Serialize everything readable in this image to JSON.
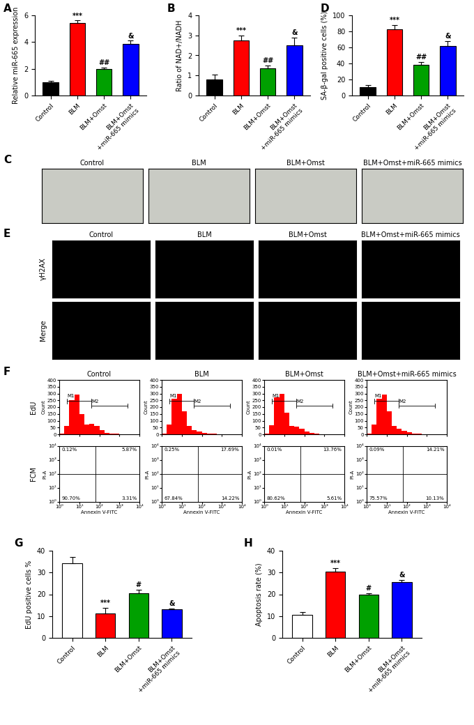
{
  "chart_data": [
    {
      "type": "bar",
      "panel_label": "A",
      "ylabel": "Relative miR-665 expression",
      "categories": [
        "Control",
        "BLM",
        "BLM+Omst",
        "BLM+Omst\n+miR-665 mimics"
      ],
      "values": [
        1.0,
        5.4,
        2.0,
        3.85
      ],
      "errors": [
        0.08,
        0.22,
        0.1,
        0.25
      ],
      "significance": [
        null,
        "***",
        "##",
        "&"
      ],
      "colors": [
        "#000000",
        "#ff0000",
        "#00a000",
        "#0000ff"
      ],
      "ylim": [
        0,
        6
      ],
      "yticks": [
        0,
        2,
        4,
        6
      ]
    },
    {
      "type": "bar",
      "panel_label": "B",
      "ylabel": "Ratio of NAD+/NADH",
      "categories": [
        "Control",
        "BLM",
        "BLM+Omst",
        "BLM+Omst\n+miR-665 mimics"
      ],
      "values": [
        0.8,
        2.75,
        1.35,
        2.5
      ],
      "errors": [
        0.25,
        0.25,
        0.15,
        0.4
      ],
      "significance": [
        null,
        "***",
        "##",
        "&"
      ],
      "colors": [
        "#000000",
        "#ff0000",
        "#00a000",
        "#0000ff"
      ],
      "ylim": [
        0,
        4
      ],
      "yticks": [
        0,
        1,
        2,
        3,
        4
      ]
    },
    {
      "type": "bar",
      "panel_label": "D",
      "ylabel": "SA-β-gal positive cells (%)",
      "categories": [
        "Control",
        "BLM",
        "BLM+Omst",
        "BLM+Omst\n+miR-665 mimics"
      ],
      "values": [
        10,
        83,
        38,
        62
      ],
      "errors": [
        3,
        5,
        4,
        6
      ],
      "significance": [
        null,
        "***",
        "##",
        "&"
      ],
      "colors": [
        "#000000",
        "#ff0000",
        "#00a000",
        "#0000ff"
      ],
      "ylim": [
        0,
        100
      ],
      "yticks": [
        0,
        20,
        40,
        60,
        80,
        100
      ]
    },
    {
      "type": "image_grid",
      "panel_label": "C",
      "color": "#c9cbc4",
      "columns": [
        "Control",
        "BLM",
        "BLM+Omst",
        "BLM+Omst+miR-665 mimics"
      ]
    },
    {
      "type": "image_grid",
      "panel_label": "E",
      "color": "#000000",
      "columns": [
        "Control",
        "BLM",
        "BLM+Omst",
        "BLM+Omst+miR-665 mimics"
      ],
      "rows": [
        "γH2AX",
        "Merge"
      ]
    },
    {
      "type": "flow_grid",
      "panel_label": "F",
      "columns": [
        "Control",
        "BLM",
        "BLM+Omst",
        "BLM+Omst+miR-665 mimics"
      ],
      "rows": [
        {
          "type": "histogram",
          "label": "EdU",
          "ylabel": "Count",
          "color": "#ff0000",
          "log": "x",
          "tick_labels": "y",
          "xlim": [
            1,
            10000
          ],
          "xticks": [
            1,
            10,
            100,
            1000,
            10000
          ],
          "ylim": [
            0,
            400
          ],
          "yticks": [
            0,
            50,
            100,
            150,
            200,
            250,
            300,
            350,
            400
          ],
          "bins": [
            1,
            1.78,
            3.16,
            5.62,
            10,
            17.8,
            31.6,
            56.2,
            100,
            178,
            316,
            562,
            1000,
            1778,
            3162,
            5623,
            10000
          ],
          "gates": [
            {
              "label": "M1",
              "start": 2.5,
              "end": 40,
              "level": 245
            },
            {
              "label": "M2",
              "start": 40,
              "end": 2500,
              "level": 210
            }
          ],
          "charts": [
            {
              "counts": [
                5,
                60,
                250,
                290,
                150,
                70,
                75,
                60,
                30,
                12,
                5,
                3,
                2,
                1,
                0,
                0
              ]
            },
            {
              "counts": [
                5,
                70,
                260,
                300,
                170,
                60,
                30,
                20,
                12,
                6,
                3,
                2,
                1,
                0,
                0,
                0
              ]
            },
            {
              "counts": [
                5,
                65,
                270,
                300,
                160,
                60,
                55,
                40,
                20,
                8,
                4,
                2,
                1,
                0,
                0,
                0
              ]
            },
            {
              "counts": [
                5,
                70,
                260,
                290,
                170,
                60,
                40,
                28,
                14,
                6,
                3,
                2,
                1,
                0,
                0,
                0
              ]
            }
          ]
        },
        {
          "type": "scatter",
          "label": "FCM",
          "xlabel": "Annexin V-FITC",
          "ylabel": "PI-A",
          "log": true,
          "color": "#ff0000",
          "xlim": [
            1,
            10000
          ],
          "ylim": [
            1,
            10000
          ],
          "xticks": [
            {
              "value": 1,
              "label": "10⁰"
            },
            {
              "value": 10,
              "label": "10¹"
            },
            {
              "value": 100,
              "label": "10²"
            },
            {
              "value": 1000,
              "label": "10³"
            },
            {
              "value": 10000,
              "label": "10⁴"
            }
          ],
          "yticks": [
            {
              "value": 1,
              "label": "10⁰"
            },
            {
              "value": 10,
              "label": "10¹"
            },
            {
              "value": 100,
              "label": "10²"
            },
            {
              "value": 1000,
              "label": "10³"
            },
            {
              "value": 10000,
              "label": "10⁴"
            }
          ],
          "gate_x": 63,
          "gate_y": 100,
          "charts": [
            {
              "quadrant_values": [
                0.12,
                5.87,
                90.7,
                3.31
              ],
              "quadrant_value_labels": [
                "0.12%",
                "5.87%",
                "90.70%",
                "3.31%"
              ]
            },
            {
              "quadrant_values": [
                0.25,
                17.69,
                67.84,
                14.22
              ],
              "quadrant_value_labels": [
                "0.25%",
                "17.69%",
                "67.84%",
                "14.22%"
              ]
            },
            {
              "quadrant_values": [
                0.01,
                13.76,
                80.62,
                5.61
              ],
              "quadrant_value_labels": [
                "0.01%",
                "13.76%",
                "80.62%",
                "5.61%"
              ]
            },
            {
              "quadrant_values": [
                0.09,
                14.21,
                75.57,
                10.13
              ],
              "quadrant_value_labels": [
                "0.09%",
                "14.21%",
                "75.57%",
                "10.13%"
              ]
            }
          ]
        }
      ]
    },
    {
      "type": "bar",
      "panel_label": "G",
      "ylabel": "EdU positive cells %",
      "categories": [
        "Control",
        "BLM",
        "BLM+Omst",
        "BLM+Omst\n+miR-665 mimics"
      ],
      "values": [
        34.2,
        11.3,
        20.5,
        13.0
      ],
      "errors": [
        3,
        2.5,
        1.5,
        0.5
      ],
      "significance": [
        null,
        "***",
        "#",
        "&"
      ],
      "colors": [
        "#ffffff",
        "#ff0000",
        "#00a000",
        "#0000ff"
      ],
      "ylim": [
        0,
        40
      ],
      "yticks": [
        0,
        10,
        20,
        30,
        40
      ]
    },
    {
      "type": "bar",
      "panel_label": "H",
      "ylabel": "Apoptosis rate (%)",
      "categories": [
        "Control",
        "BLM",
        "BLM+Omst",
        "BLM+Omst\n+miR-665 mimics"
      ],
      "values": [
        10.5,
        30.5,
        20.0,
        25.5
      ],
      "errors": [
        1.2,
        1.5,
        0.5,
        1.2
      ],
      "significance": [
        null,
        "***",
        "#",
        "&"
      ],
      "colors": [
        "#ffffff",
        "#ff0000",
        "#00a000",
        "#0000ff"
      ],
      "ylim": [
        0,
        40
      ],
      "yticks": [
        0,
        10,
        20,
        30,
        40
      ]
    }
  ]
}
